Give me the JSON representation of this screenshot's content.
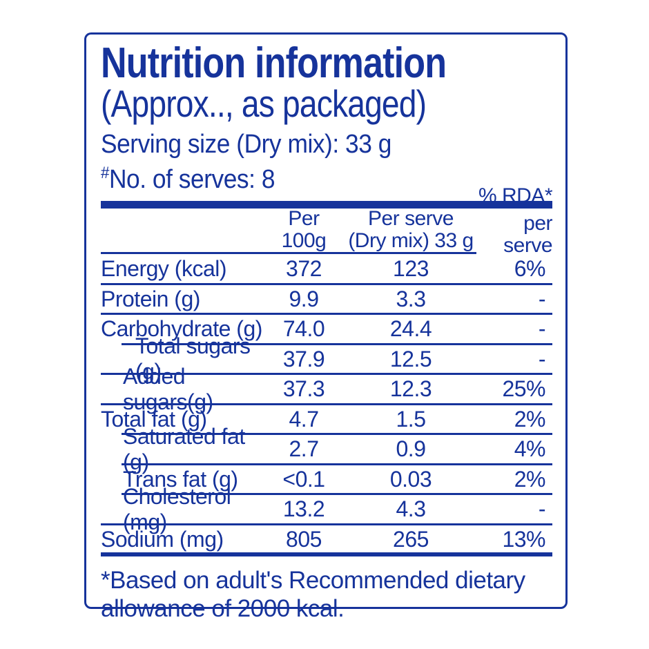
{
  "colors": {
    "primary_blue": "#16339B",
    "background": "#FFFFFF"
  },
  "panel": {
    "title": "Nutrition information",
    "subtitle": "(Approx.., as packaged)",
    "serving_size": "Serving size (Dry mix): 33 g",
    "serves_marker": "#",
    "serves": "No. of serves: 8"
  },
  "table": {
    "header": {
      "per_100g_line1": "Per",
      "per_100g_line2": "100g",
      "per_serve_line1": "Per serve",
      "per_serve_line2": "(Dry mix) 33 g",
      "rda_line1": "% RDA*",
      "rda_line2": "per serve"
    },
    "rows": [
      {
        "label": "Energy (kcal)",
        "per_100g": "372",
        "per_serve": "123",
        "rda_per_serve": "6%"
      },
      {
        "label": "Protein (g)",
        "per_100g": "9.9",
        "per_serve": "3.3",
        "rda_per_serve": "-"
      },
      {
        "label": "Carbohydrate (g)",
        "per_100g": "74.0",
        "per_serve": "24.4",
        "rda_per_serve": "-"
      },
      {
        "label": "Total sugars (g)",
        "per_100g": "37.9",
        "per_serve": "12.5",
        "rda_per_serve": "-"
      },
      {
        "label": "Added sugars(g)",
        "per_100g": "37.3",
        "per_serve": "12.3",
        "rda_per_serve": "25%"
      },
      {
        "label": "Total fat (g)",
        "per_100g": "4.7",
        "per_serve": "1.5",
        "rda_per_serve": "2%"
      },
      {
        "label": "Saturated fat (g)",
        "per_100g": "2.7",
        "per_serve": "0.9",
        "rda_per_serve": "4%"
      },
      {
        "label": "Trans fat (g)",
        "per_100g": "<0.1",
        "per_serve": "0.03",
        "rda_per_serve": "2%"
      },
      {
        "label": "Cholesterol (mg)",
        "per_100g": "13.2",
        "per_serve": "4.3",
        "rda_per_serve": "-"
      },
      {
        "label": "Sodium (mg)",
        "per_100g": "805",
        "per_serve": "265",
        "rda_per_serve": "13%"
      }
    ]
  },
  "footnote": "*Based on adult's Recommended dietary allowance of 2000 kcal."
}
